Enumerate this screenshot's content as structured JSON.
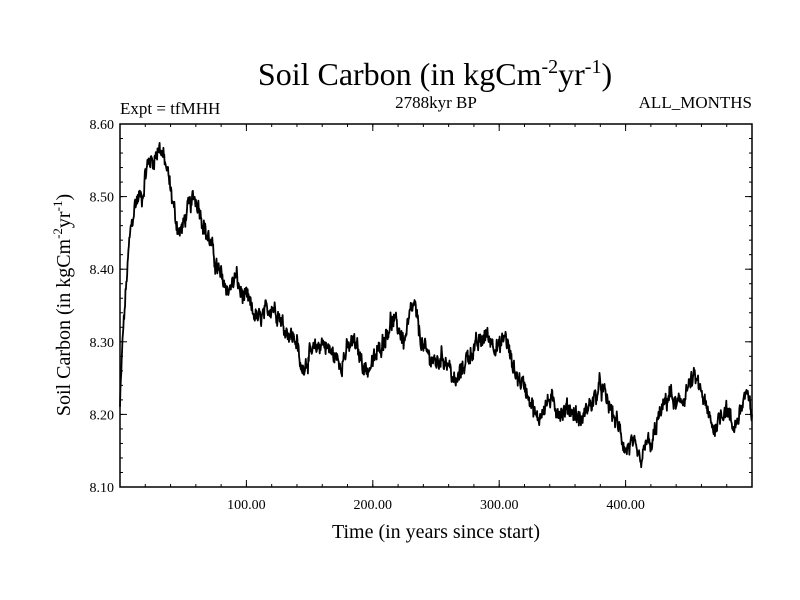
{
  "chart_data": {
    "type": "line",
    "title": {
      "main": "Soil Carbon (in kgCm",
      "exp1": "-2",
      "mid": "yr",
      "exp2": "-1",
      "end": ")"
    },
    "subtitle_left": "Expt = tfMHH",
    "subtitle_center": "2788kyr BP",
    "subtitle_right": "ALL_MONTHS",
    "xlabel": "Time (in years since start)",
    "ylabel": {
      "main": "Soil Carbon (in kgCm",
      "exp1": "-2",
      "mid": "yr",
      "exp2": "-1",
      "end": ")"
    },
    "xlim": [
      0,
      500
    ],
    "ylim": [
      8.1,
      8.6
    ],
    "x_ticks": [
      {
        "value": 100,
        "label": "100.00"
      },
      {
        "value": 200,
        "label": "200.00"
      },
      {
        "value": 300,
        "label": "300.00"
      },
      {
        "value": 400,
        "label": "400.00"
      }
    ],
    "y_ticks": [
      {
        "value": 8.1,
        "label": "8.10"
      },
      {
        "value": 8.2,
        "label": "8.20"
      },
      {
        "value": 8.3,
        "label": "8.30"
      },
      {
        "value": 8.4,
        "label": "8.40"
      },
      {
        "value": 8.5,
        "label": "8.50"
      },
      {
        "value": 8.6,
        "label": "8.60"
      }
    ],
    "series": [
      {
        "name": "Soil Carbon",
        "color": "#000000",
        "x": [
          0,
          2,
          5,
          8,
          12,
          15,
          18,
          20,
          23,
          26,
          29,
          31,
          33,
          35,
          38,
          41,
          44,
          47,
          50,
          53,
          56,
          59,
          62,
          65,
          68,
          71,
          74,
          77,
          80,
          83,
          86,
          89,
          92,
          95,
          98,
          101,
          105,
          110,
          115,
          120,
          125,
          130,
          135,
          140,
          143,
          146,
          150,
          155,
          160,
          165,
          170,
          175,
          180,
          185,
          190,
          195,
          200,
          205,
          210,
          215,
          220,
          225,
          230,
          233,
          236,
          240,
          245,
          250,
          255,
          260,
          265,
          270,
          275,
          280,
          285,
          290,
          295,
          300,
          305,
          310,
          315,
          320,
          325,
          330,
          335,
          340,
          345,
          350,
          355,
          360,
          365,
          370,
          375,
          380,
          385,
          390,
          395,
          400,
          405,
          410,
          413,
          416,
          420,
          425,
          430,
          435,
          440,
          445,
          450,
          455,
          460,
          465,
          470,
          475,
          480,
          485,
          490,
          495,
          500
        ],
        "values": [
          8.21,
          8.3,
          8.38,
          8.45,
          8.49,
          8.5,
          8.5,
          8.53,
          8.55,
          8.55,
          8.56,
          8.57,
          8.56,
          8.55,
          8.53,
          8.5,
          8.47,
          8.45,
          8.46,
          8.48,
          8.49,
          8.5,
          8.49,
          8.47,
          8.45,
          8.44,
          8.42,
          8.4,
          8.39,
          8.38,
          8.37,
          8.38,
          8.39,
          8.37,
          8.36,
          8.36,
          8.34,
          8.33,
          8.34,
          8.35,
          8.34,
          8.32,
          8.31,
          8.3,
          8.26,
          8.27,
          8.28,
          8.29,
          8.3,
          8.29,
          8.28,
          8.27,
          8.29,
          8.3,
          8.28,
          8.26,
          8.27,
          8.29,
          8.31,
          8.33,
          8.32,
          8.3,
          8.34,
          8.35,
          8.32,
          8.29,
          8.28,
          8.27,
          8.28,
          8.27,
          8.24,
          8.26,
          8.28,
          8.29,
          8.3,
          8.31,
          8.3,
          8.29,
          8.31,
          8.27,
          8.25,
          8.24,
          8.22,
          8.19,
          8.21,
          8.22,
          8.21,
          8.2,
          8.21,
          8.2,
          8.19,
          8.21,
          8.22,
          8.24,
          8.22,
          8.2,
          8.18,
          8.15,
          8.16,
          8.14,
          8.13,
          8.17,
          8.15,
          8.19,
          8.21,
          8.23,
          8.21,
          8.22,
          8.24,
          8.25,
          8.23,
          8.2,
          8.18,
          8.2,
          8.21,
          8.18,
          8.2,
          8.23,
          8.2
        ]
      }
    ]
  }
}
